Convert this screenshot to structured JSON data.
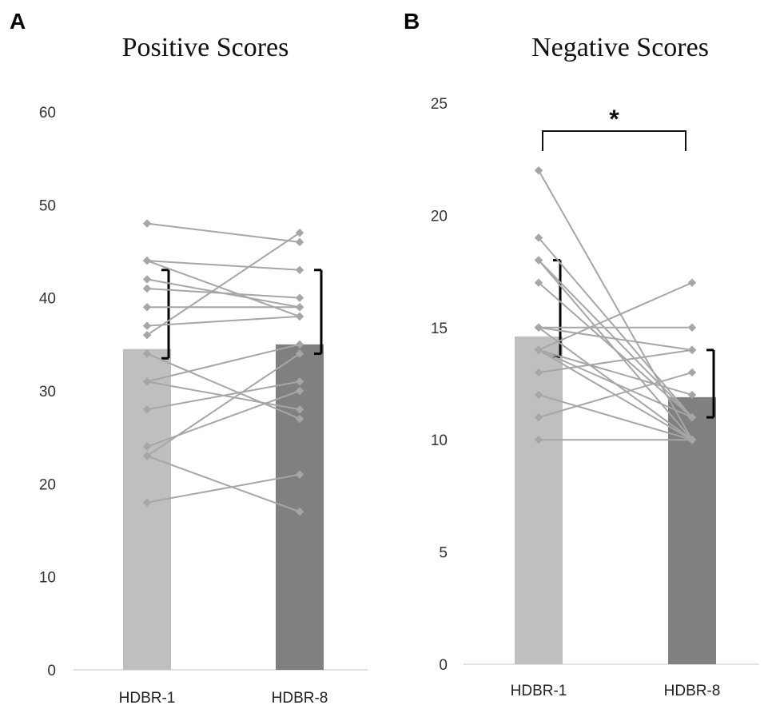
{
  "chart_data": [
    {
      "panel": "A",
      "type": "bar",
      "title": "Positive Scores",
      "categories": [
        "HDBR-1",
        "HDBR-8"
      ],
      "values": [
        34.5,
        35
      ],
      "error_bars": [
        {
          "low": 33.5,
          "high": 43
        },
        {
          "low": 34,
          "high": 43
        }
      ],
      "bar_colors": [
        "#bfbfbf",
        "#808080"
      ],
      "ylim": [
        0,
        60
      ],
      "yticks": [
        "0",
        "10",
        "20",
        "30",
        "40",
        "50",
        "60"
      ],
      "ytick_values": [
        0,
        10,
        20,
        30,
        40,
        50,
        60
      ],
      "individual_pairs": [
        [
          48,
          46
        ],
        [
          44,
          43
        ],
        [
          44,
          38
        ],
        [
          42,
          39
        ],
        [
          41,
          40
        ],
        [
          39,
          39
        ],
        [
          37,
          38
        ],
        [
          36,
          47
        ],
        [
          34,
          27
        ],
        [
          31,
          35
        ],
        [
          31,
          28
        ],
        [
          28,
          31
        ],
        [
          24,
          30
        ],
        [
          23,
          34
        ],
        [
          23,
          17
        ],
        [
          18,
          21
        ]
      ],
      "significance": null
    },
    {
      "panel": "B",
      "type": "bar",
      "title": "Negative Scores",
      "categories": [
        "HDBR-1",
        "HDBR-8"
      ],
      "values": [
        14.6,
        11.9
      ],
      "error_bars": [
        {
          "low": 13.7,
          "high": 18
        },
        {
          "low": 11,
          "high": 14
        }
      ],
      "bar_colors": [
        "#bfbfbf",
        "#808080"
      ],
      "ylim": [
        0,
        25
      ],
      "yticks": [
        "0",
        "5",
        "10",
        "15",
        "20",
        "25"
      ],
      "ytick_values": [
        0,
        5,
        10,
        15,
        20,
        25
      ],
      "individual_pairs": [
        [
          22,
          10
        ],
        [
          19,
          11
        ],
        [
          18,
          10
        ],
        [
          18,
          11
        ],
        [
          17,
          11
        ],
        [
          15,
          14
        ],
        [
          15,
          15
        ],
        [
          15,
          10
        ],
        [
          14,
          12
        ],
        [
          14,
          10
        ],
        [
          13,
          14
        ],
        [
          12,
          10
        ],
        [
          11,
          13
        ],
        [
          10,
          10
        ],
        [
          14,
          17
        ],
        [
          14,
          11
        ]
      ],
      "significance": "*"
    }
  ]
}
